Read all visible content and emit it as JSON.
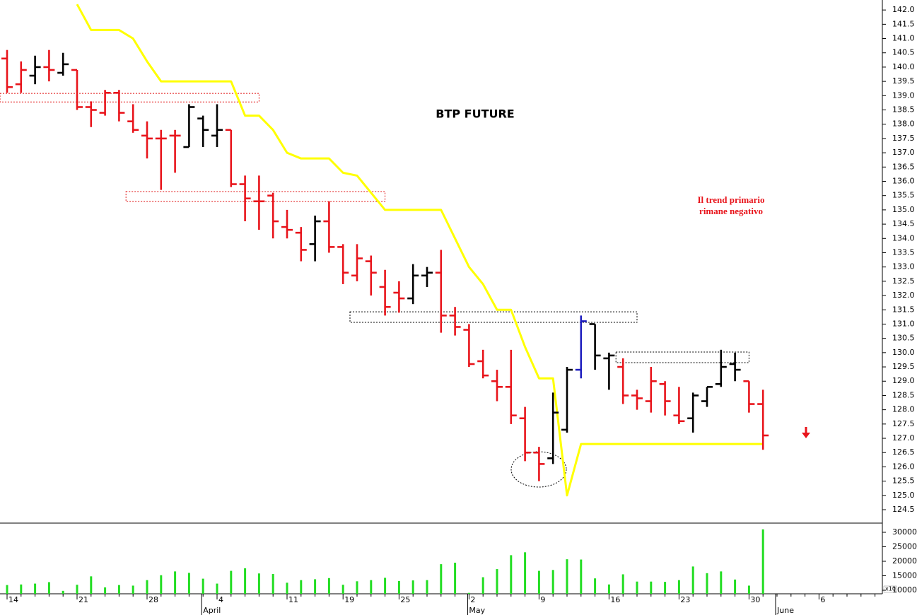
{
  "chart_data": [
    {
      "type": "ohlc",
      "title": "BTP FUTURE",
      "annotation": [
        "Il trend primario",
        "rimane negativo"
      ],
      "categories": [
        "14",
        null,
        null,
        null,
        null,
        "21",
        null,
        null,
        null,
        null,
        "28",
        null,
        null,
        null,
        null,
        "4",
        null,
        null,
        null,
        null,
        "11",
        null,
        null,
        null,
        "19",
        null,
        null,
        null,
        "25",
        null,
        null,
        null,
        null,
        "2",
        null,
        null,
        null,
        null,
        "9",
        null,
        null,
        null,
        null,
        "16",
        null,
        null,
        null,
        null,
        "23",
        null,
        null,
        null,
        null,
        "30",
        null,
        null,
        null,
        null,
        "6",
        null,
        null,
        null,
        null
      ],
      "month_labels": [
        null,
        null,
        null,
        null,
        null,
        null,
        null,
        null,
        null,
        null,
        null,
        null,
        null,
        null,
        "April",
        null,
        null,
        null,
        null,
        null,
        null,
        null,
        null,
        null,
        null,
        null,
        null,
        null,
        null,
        null,
        null,
        null,
        null,
        "May",
        null,
        null,
        null,
        null,
        null,
        null,
        null,
        null,
        null,
        null,
        null,
        null,
        null,
        null,
        null,
        null,
        null,
        null,
        null,
        null,
        null,
        "June",
        null,
        null,
        null,
        null,
        null,
        null,
        null
      ],
      "open": [
        140.3,
        139.4,
        139.7,
        140.0,
        139.8,
        139.9,
        138.6,
        138.4,
        139.1,
        138.1,
        137.6,
        137.5,
        137.6,
        137.2,
        138.2,
        137.6,
        137.8,
        135.9,
        135.3,
        135.5,
        134.4,
        134.2,
        133.8,
        134.6,
        133.7,
        132.7,
        133.2,
        132.3,
        132.1,
        131.9,
        132.7,
        132.8,
        131.3,
        130.8,
        129.7,
        129.0,
        128.8,
        127.7,
        126.5,
        126.3,
        127.3,
        129.4,
        131.0,
        129.8,
        129.5,
        128.5,
        128.3,
        128.9,
        127.8,
        127.7,
        128.3,
        128.9,
        129.6,
        129.0,
        128.2,
        null,
        null,
        null,
        null,
        null,
        null,
        null,
        null
      ],
      "high": [
        140.6,
        140.2,
        140.4,
        140.6,
        140.5,
        139.9,
        138.8,
        139.2,
        139.2,
        138.7,
        138.1,
        137.8,
        137.8,
        138.7,
        138.3,
        138.7,
        137.8,
        136.2,
        136.2,
        135.6,
        135.0,
        134.4,
        134.8,
        135.3,
        133.8,
        133.8,
        133.4,
        132.9,
        132.5,
        133.1,
        133.0,
        133.6,
        131.6,
        131.0,
        130.1,
        129.4,
        130.1,
        128.1,
        126.7,
        128.6,
        129.5,
        131.3,
        131.0,
        130.0,
        129.8,
        128.7,
        129.5,
        129.0,
        128.8,
        128.6,
        128.8,
        130.1,
        130.0,
        129.0,
        128.7,
        null,
        null,
        null,
        null,
        null,
        null,
        null,
        null
      ],
      "low": [
        139.1,
        139.1,
        139.4,
        139.5,
        139.7,
        138.5,
        137.9,
        138.3,
        138.1,
        137.7,
        136.8,
        135.7,
        136.3,
        137.2,
        137.2,
        137.2,
        135.8,
        134.6,
        134.3,
        134.0,
        134.0,
        133.2,
        133.2,
        133.5,
        132.4,
        132.5,
        132.0,
        131.3,
        131.4,
        131.7,
        132.3,
        130.7,
        130.6,
        129.5,
        129.1,
        128.3,
        127.5,
        126.2,
        125.5,
        126.1,
        127.2,
        129.1,
        129.4,
        128.7,
        128.2,
        128.0,
        127.9,
        127.8,
        127.5,
        127.2,
        128.1,
        128.8,
        129.0,
        127.9,
        126.6,
        null,
        null,
        null,
        null,
        null,
        null,
        null,
        null
      ],
      "close": [
        139.3,
        139.9,
        140.0,
        139.9,
        140.1,
        138.6,
        138.5,
        139.1,
        138.4,
        137.8,
        137.5,
        137.5,
        137.6,
        138.6,
        137.8,
        137.8,
        135.9,
        135.4,
        135.3,
        134.6,
        134.3,
        133.6,
        134.6,
        133.7,
        132.8,
        133.3,
        132.8,
        131.6,
        131.9,
        132.7,
        132.8,
        131.3,
        130.9,
        129.6,
        129.2,
        128.8,
        127.8,
        126.5,
        126.1,
        127.9,
        129.4,
        131.1,
        129.9,
        129.9,
        128.5,
        128.4,
        129.0,
        128.3,
        127.6,
        128.5,
        128.8,
        129.5,
        129.4,
        128.2,
        127.1,
        null,
        null,
        null,
        null,
        null,
        null,
        null,
        null
      ],
      "bar_colors": [
        "#e8141b",
        "#e8141b",
        "#000000",
        "#e8141b",
        "#000000",
        "#e8141b",
        "#e8141b",
        "#e8141b",
        "#e8141b",
        "#e8141b",
        "#e8141b",
        "#e8141b",
        "#e8141b",
        "#000000",
        "#000000",
        "#000000",
        "#e8141b",
        "#e8141b",
        "#e8141b",
        "#e8141b",
        "#e8141b",
        "#e8141b",
        "#000000",
        "#e8141b",
        "#e8141b",
        "#e8141b",
        "#e8141b",
        "#e8141b",
        "#e8141b",
        "#000000",
        "#000000",
        "#e8141b",
        "#e8141b",
        "#e8141b",
        "#e8141b",
        "#e8141b",
        "#e8141b",
        "#e8141b",
        "#e8141b",
        "#000000",
        "#000000",
        "#1f1fbf",
        "#000000",
        "#000000",
        "#e8141b",
        "#e8141b",
        "#e8141b",
        "#e8141b",
        "#e8141b",
        "#000000",
        "#000000",
        "#000000",
        "#000000",
        "#e8141b",
        "#e8141b",
        null,
        null,
        null,
        null,
        null,
        null,
        null,
        null
      ],
      "overlay": {
        "color": "#ffff00",
        "values": [
          null,
          null,
          null,
          null,
          null,
          142.2,
          141.3,
          141.3,
          141.3,
          141.0,
          140.2,
          139.5,
          139.5,
          139.5,
          139.5,
          139.5,
          139.5,
          138.3,
          138.3,
          137.8,
          137.0,
          136.8,
          136.8,
          136.8,
          136.3,
          136.2,
          135.6,
          135.0,
          135.0,
          135.0,
          135.0,
          135.0,
          134.0,
          133.0,
          132.4,
          131.5,
          131.5,
          130.2,
          129.1,
          129.1,
          125.0,
          126.8,
          126.8,
          126.8,
          126.8,
          126.8,
          126.8,
          126.8,
          126.8,
          126.8,
          126.8,
          126.8,
          126.8,
          126.8,
          126.8,
          null,
          null,
          null,
          null,
          null,
          null,
          null,
          null
        ]
      },
      "zones": [
        {
          "start": 0,
          "end": 18,
          "low": 138.78,
          "high": 139.08,
          "color": "#e01010"
        },
        {
          "start": 9,
          "end": 27,
          "low": 135.29,
          "high": 135.64,
          "color": "#e01010"
        },
        {
          "start": 25,
          "end": 45,
          "low": 131.06,
          "high": 131.43,
          "color": "#000000"
        },
        {
          "start": 44,
          "end": 53,
          "low": 129.65,
          "high": 130.02,
          "color": "#000000"
        }
      ],
      "ylim": [
        124.03,
        142.35
      ],
      "yticks": [
        124.5,
        {
          "value": 125,
          "label": "125.0"
        },
        125.5,
        {
          "value": 126,
          "label": "126.0"
        },
        126.5,
        {
          "value": 127,
          "label": "127.0"
        },
        127.5,
        {
          "value": 128,
          "label": "128.0"
        },
        128.5,
        {
          "value": 129,
          "label": "129.0"
        },
        129.5,
        {
          "value": 130,
          "label": "130.0"
        },
        130.5,
        {
          "value": 131,
          "label": "131.0"
        },
        131.5,
        {
          "value": 132,
          "label": "132.0"
        },
        132.5,
        {
          "value": 133,
          "label": "133.0"
        },
        133.5,
        {
          "value": 134,
          "label": "134.0"
        },
        134.5,
        {
          "value": 135,
          "label": "135.0"
        },
        135.5,
        {
          "value": 136,
          "label": "136.0"
        },
        136.5,
        {
          "value": 137,
          "label": "137.0"
        },
        137.5,
        {
          "value": 138,
          "label": "138.0"
        },
        138.5,
        {
          "value": 139,
          "label": "139.0"
        },
        139.5,
        {
          "value": 140,
          "label": "140.0"
        },
        140.5,
        {
          "value": 141,
          "label": "141.0"
        },
        141.5,
        {
          "value": 142,
          "label": "142.0"
        }
      ]
    },
    {
      "type": "bar",
      "color": "#22dd22",
      "unit_label": "x10",
      "values": [
        11800,
        12000,
        12300,
        12800,
        9800,
        11900,
        14800,
        11000,
        11800,
        11600,
        13500,
        15200,
        16500,
        16000,
        14000,
        12300,
        16700,
        17600,
        15800,
        15600,
        12600,
        13500,
        13800,
        14200,
        11900,
        13100,
        13500,
        14300,
        13200,
        13400,
        13500,
        19000,
        19500,
        9100,
        14500,
        17300,
        22100,
        23100,
        16700,
        17000,
        20700,
        20600,
        14100,
        12000,
        15500,
        13000,
        13000,
        12900,
        13500,
        18200,
        15900,
        16500,
        13700,
        11600,
        31000,
        null,
        null,
        null,
        null,
        null,
        null,
        null,
        null
      ],
      "ylim": [
        8780,
        33170
      ],
      "yticks": [
        10000,
        15000,
        20000,
        25000,
        30000
      ]
    }
  ]
}
